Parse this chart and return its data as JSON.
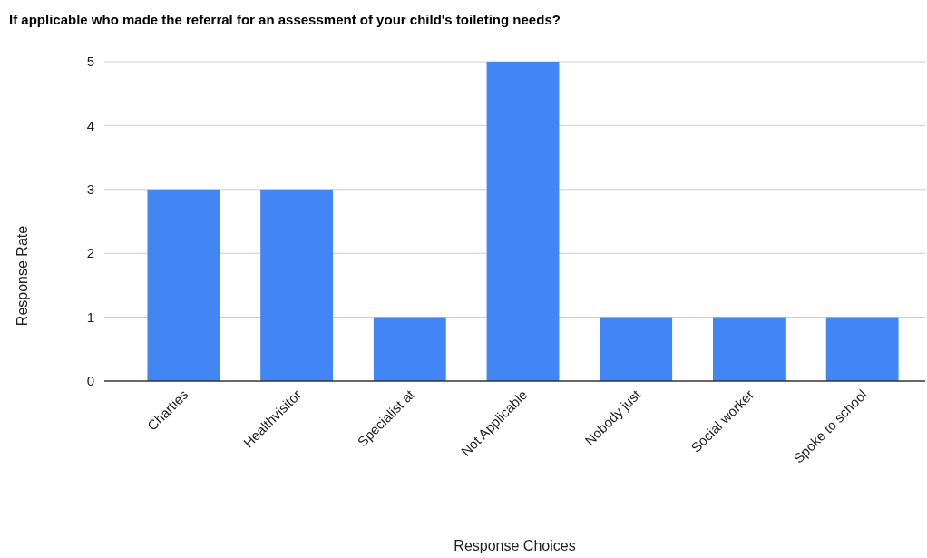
{
  "chart_data": {
    "type": "bar",
    "title": "If applicable who made the referral for an assessment of your child's toileting needs?",
    "xlabel": "Response Choices",
    "ylabel": "Response Rate",
    "categories": [
      "Charties",
      "Healthvisitor",
      "Specialist at",
      "Not Applicable",
      "Nobody just",
      "Social worker",
      "Spoke to school"
    ],
    "values": [
      3,
      3,
      1,
      5,
      1,
      1,
      1
    ],
    "color": "#4285f4",
    "ylim": [
      0,
      5
    ],
    "yticks": [
      0,
      1,
      2,
      3,
      4,
      5
    ],
    "grid": "y"
  }
}
